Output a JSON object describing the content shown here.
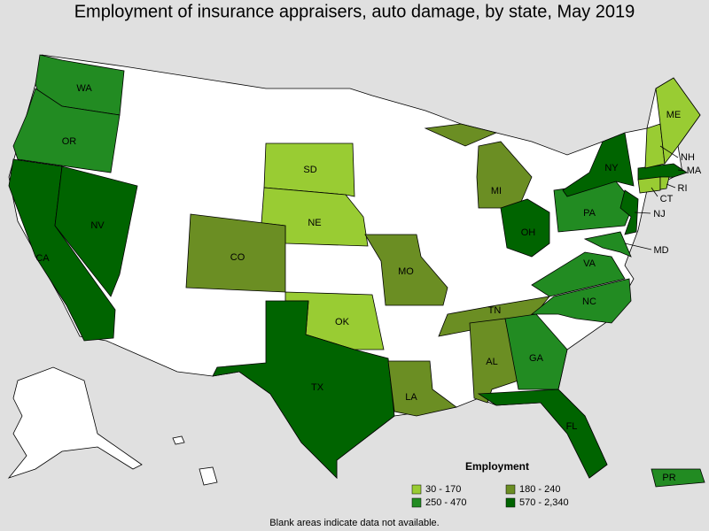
{
  "title": "Employment of insurance appraisers, auto damage, by state, May 2019",
  "legend": {
    "title": "Employment",
    "items": [
      {
        "label": "30 - 170",
        "color": "#99cc33"
      },
      {
        "label": "180 - 240",
        "color": "#6b8e23"
      },
      {
        "label": "250 - 470",
        "color": "#228b22"
      },
      {
        "label": "570 - 2,340",
        "color": "#006400"
      }
    ]
  },
  "states": [
    {
      "label": "WA",
      "range": "250 - 470"
    },
    {
      "label": "OR",
      "range": "250 - 470"
    },
    {
      "label": "CA",
      "range": "570 - 2,340"
    },
    {
      "label": "NV",
      "range": "570 - 2,340"
    },
    {
      "label": "SD",
      "range": "30 - 170"
    },
    {
      "label": "NE",
      "range": "30 - 170"
    },
    {
      "label": "CO",
      "range": "180 - 240"
    },
    {
      "label": "OK",
      "range": "30 - 170"
    },
    {
      "label": "TX",
      "range": "570 - 2,340"
    },
    {
      "label": "MO",
      "range": "180 - 240"
    },
    {
      "label": "LA",
      "range": "180 - 240"
    },
    {
      "label": "MI",
      "range": "180 - 240"
    },
    {
      "label": "OH",
      "range": "570 - 2,340"
    },
    {
      "label": "TN",
      "range": "180 - 240"
    },
    {
      "label": "AL",
      "range": "180 - 240"
    },
    {
      "label": "GA",
      "range": "250 - 470"
    },
    {
      "label": "FL",
      "range": "570 - 2,340"
    },
    {
      "label": "NC",
      "range": "250 - 470"
    },
    {
      "label": "VA",
      "range": "250 - 470"
    },
    {
      "label": "PA",
      "range": "250 - 470"
    },
    {
      "label": "NY",
      "range": "570 - 2,340"
    },
    {
      "label": "NJ",
      "range": "570 - 2,340"
    },
    {
      "label": "MD",
      "range": "250 - 470"
    },
    {
      "label": "MA",
      "range": "570 - 2,340"
    },
    {
      "label": "CT",
      "range": "30 - 170"
    },
    {
      "label": "RI",
      "range": "30 - 170"
    },
    {
      "label": "NH",
      "range": "30 - 170"
    },
    {
      "label": "ME",
      "range": "30 - 170"
    },
    {
      "label": "PR",
      "range": "250 - 470"
    }
  ],
  "footnote": "Blank areas indicate data not available."
}
